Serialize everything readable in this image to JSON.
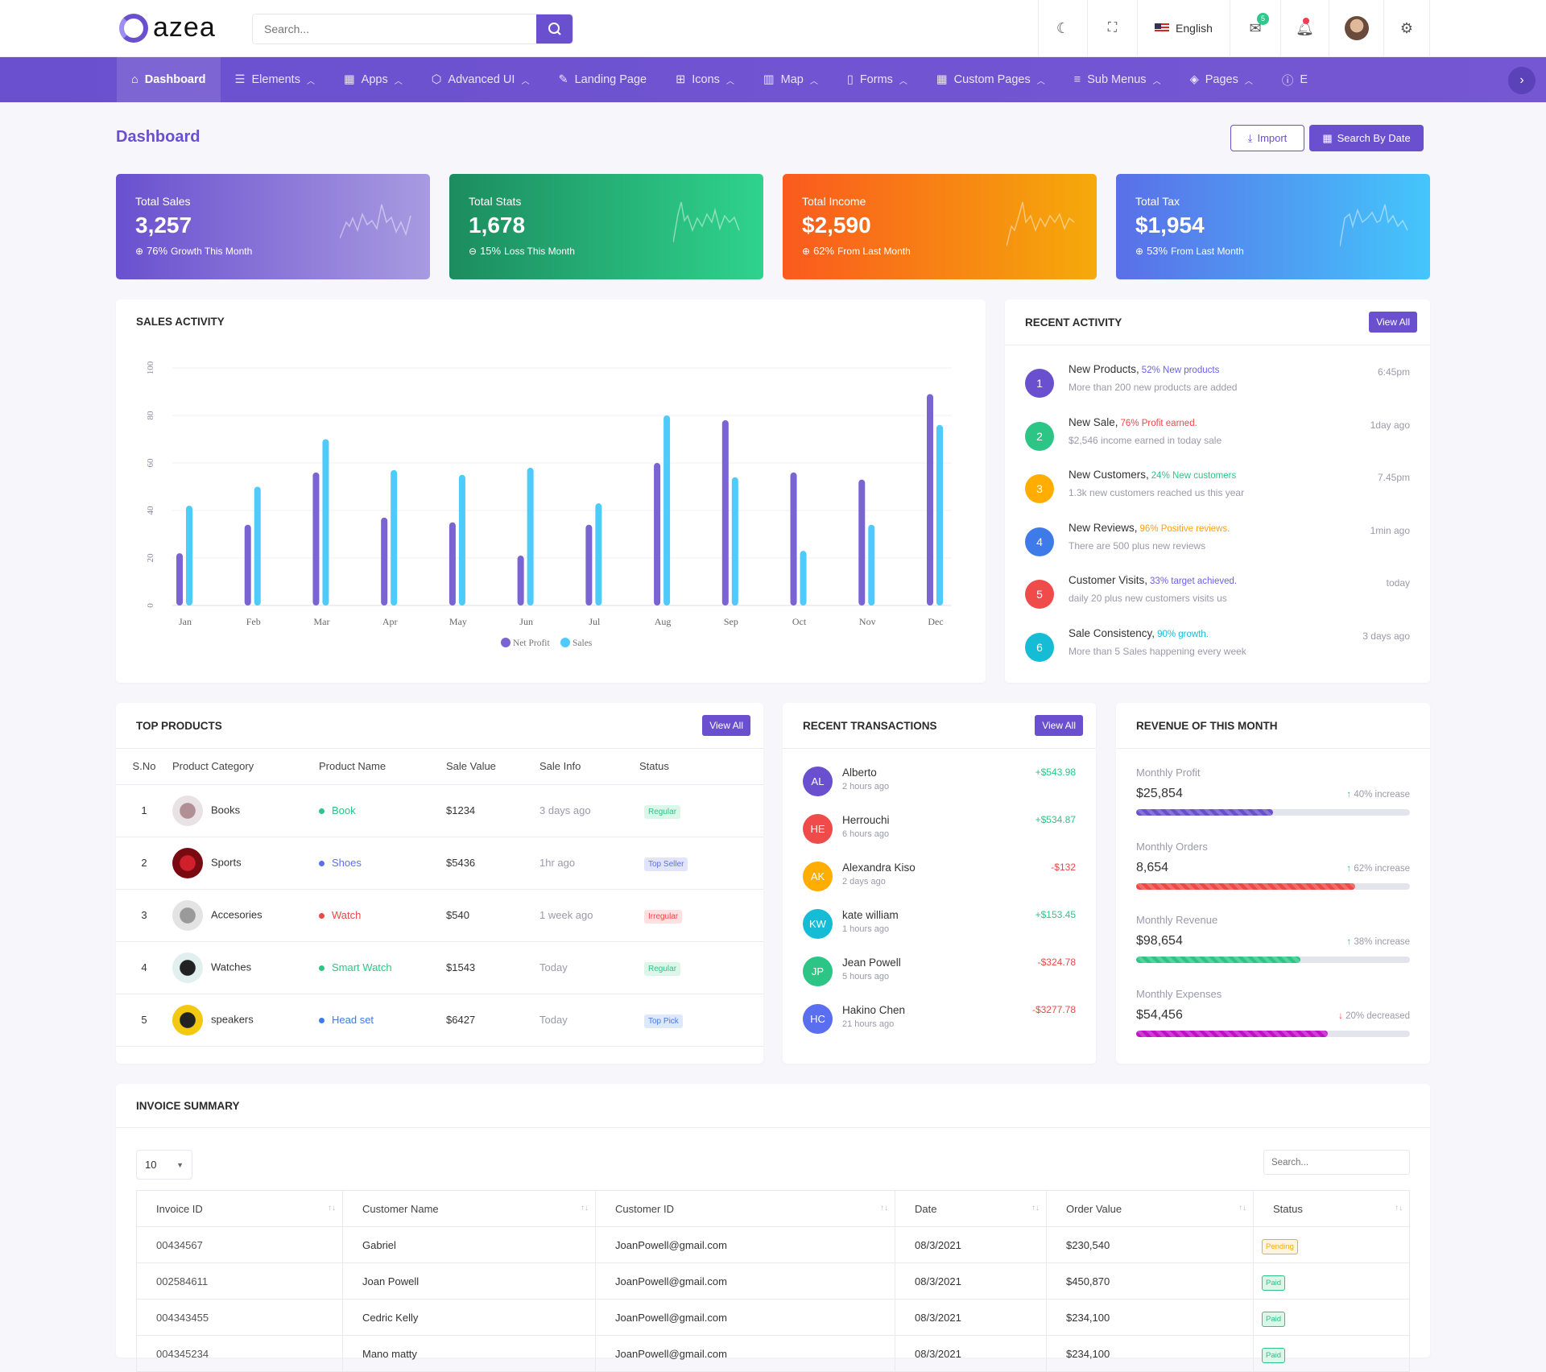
{
  "header": {
    "logo": "azea",
    "search_placeholder": "Search...",
    "language": "English",
    "mail_count": "5"
  },
  "nav": {
    "items": [
      {
        "label": "Dashboard",
        "icon": "home-icon",
        "glyph": "⌂",
        "active": true,
        "caret": false
      },
      {
        "label": "Elements",
        "icon": "database-icon",
        "glyph": "☰",
        "caret": true
      },
      {
        "label": "Apps",
        "icon": "grid-icon",
        "glyph": "▦",
        "caret": true
      },
      {
        "label": "Advanced UI",
        "icon": "box-icon",
        "glyph": "⬡",
        "caret": true
      },
      {
        "label": "Landing Page",
        "icon": "edit-icon",
        "glyph": "✎",
        "caret": false
      },
      {
        "label": "Icons",
        "icon": "gift-icon",
        "glyph": "⊞",
        "caret": true
      },
      {
        "label": "Map",
        "icon": "map-icon",
        "glyph": "▥",
        "caret": true
      },
      {
        "label": "Forms",
        "icon": "file-icon",
        "glyph": "▯",
        "caret": true
      },
      {
        "label": "Custom Pages",
        "icon": "apps-icon",
        "glyph": "▦",
        "caret": true
      },
      {
        "label": "Sub Menus",
        "icon": "list-icon",
        "glyph": "≡",
        "caret": true
      },
      {
        "label": "Pages",
        "icon": "layers-icon",
        "glyph": "◈",
        "caret": true
      },
      {
        "label": "E",
        "icon": "info-icon",
        "glyph": "ⓘ",
        "caret": false
      }
    ]
  },
  "page": {
    "title": "Dashboard",
    "import_label": "Import",
    "search_date_label": "Search By Date"
  },
  "stats": [
    {
      "title": "Total Sales",
      "value": "3,257",
      "pct": "76%",
      "note": "Growth This Month",
      "direction": "up",
      "colors": [
        "#6a50cf",
        "#a89be0"
      ]
    },
    {
      "title": "Total Stats",
      "value": "1,678",
      "pct": "15%",
      "note": "Loss This Month",
      "direction": "down",
      "colors": [
        "#1c8c5f",
        "#2fd38d"
      ]
    },
    {
      "title": "Total Income",
      "value": "$2,590",
      "pct": "62%",
      "note": "From Last Month",
      "direction": "up",
      "colors": [
        "#fa5a1e",
        "#f5aa0a"
      ]
    },
    {
      "title": "Total Tax",
      "value": "$1,954",
      "pct": "53%",
      "note": "From Last Month",
      "direction": "up",
      "colors": [
        "#5a6fe8",
        "#44c6fb"
      ]
    }
  ],
  "sales_activity": {
    "title": "SALES ACTIVITY"
  },
  "chart_data": {
    "type": "bar",
    "categories": [
      "Jan",
      "Feb",
      "Mar",
      "Apr",
      "May",
      "Jun",
      "Jul",
      "Aug",
      "Sep",
      "Oct",
      "Nov",
      "Dec"
    ],
    "series": [
      {
        "name": "Net Profit",
        "color": "#7a63d3",
        "values": [
          22,
          34,
          56,
          37,
          35,
          21,
          34,
          60,
          78,
          56,
          53,
          89
        ]
      },
      {
        "name": "Sales",
        "color": "#4fcbfb",
        "values": [
          42,
          50,
          70,
          57,
          55,
          58,
          43,
          80,
          54,
          23,
          34,
          76
        ]
      }
    ],
    "yticks": [
      0,
      20,
      40,
      60,
      80,
      100
    ],
    "ylim": [
      0,
      100
    ],
    "grid": true,
    "legend": "bottom"
  },
  "recent_activity": {
    "title": "RECENT ACTIVITY",
    "view_all": "View All",
    "items": [
      {
        "n": "1",
        "title": "New Products,",
        "tag": "52% New products",
        "desc": "More than 200 new products are added",
        "time": "6:45pm",
        "color": "#6a50cf",
        "tag_color": "#6a5ff0"
      },
      {
        "n": "2",
        "title": "New Sale,",
        "tag": "76% Profit earned.",
        "desc": "$2,546 income earned in today sale",
        "time": "1day ago",
        "color": "#2dc585",
        "tag_color": "#f04646"
      },
      {
        "n": "3",
        "title": "New Customers,",
        "tag": "24% New customers",
        "desc": "1.3k new customers reached us this year",
        "time": "7.45pm",
        "color": "#ffad00",
        "tag_color": "#2dc585"
      },
      {
        "n": "4",
        "title": "New Reviews,",
        "tag": "96% Positive reviews.",
        "desc": "There are 500 plus new reviews",
        "time": "1min ago",
        "color": "#3f7be8",
        "tag_color": "#ff9f1a"
      },
      {
        "n": "5",
        "title": "Customer Visits,",
        "tag": "33% target achieved.",
        "desc": "daily 20 plus new customers visits us",
        "time": "today",
        "color": "#ef4b4b",
        "tag_color": "#6a5ff0"
      },
      {
        "n": "6",
        "title": "Sale Consistency,",
        "tag": "90% growth.",
        "desc": "More than 5 Sales happening every week",
        "time": "3 days ago",
        "color": "#16bcd6",
        "tag_color": "#16bcd6"
      }
    ]
  },
  "top_products": {
    "title": "TOP PRODUCTS",
    "view_all": "View All",
    "columns": [
      "S.No",
      "Product Category",
      "Product Name",
      "Sale Value",
      "Sale Info",
      "Status"
    ],
    "rows": [
      {
        "sno": "1",
        "category": "Books",
        "name": "Book",
        "name_color": "#2dc585",
        "value": "$1234",
        "info": "3 days ago",
        "status": "Regular",
        "status_bg": "#dcf6ea",
        "status_fg": "#2dc585",
        "img": [
          "#b09095",
          "#e8e2e4"
        ]
      },
      {
        "sno": "2",
        "category": "Sports",
        "name": "Shoes",
        "name_color": "#5a6ff0",
        "value": "$5436",
        "info": "1hr ago",
        "status": "Top Seller",
        "status_bg": "#e2e4fb",
        "status_fg": "#5a6ff0",
        "img": [
          "#d0202b",
          "#7a0a12"
        ]
      },
      {
        "sno": "3",
        "category": "Accesories",
        "name": "Watch",
        "name_color": "#f04646",
        "value": "$540",
        "info": "1 week ago",
        "status": "Irregular",
        "status_bg": "#fde0e0",
        "status_fg": "#f04646",
        "img": [
          "#9a9a9a",
          "#e3e3e3"
        ]
      },
      {
        "sno": "4",
        "category": "Watches",
        "name": "Smart Watch",
        "name_color": "#2dc585",
        "value": "$1543",
        "info": "Today",
        "status": "Regular",
        "status_bg": "#dcf6ea",
        "status_fg": "#2dc585",
        "img": [
          "#222",
          "#e2efef"
        ]
      },
      {
        "sno": "5",
        "category": "speakers",
        "name": "Head set",
        "name_color": "#3f7be8",
        "value": "$6427",
        "info": "Today",
        "status": "Top Pick",
        "status_bg": "#dde8fb",
        "status_fg": "#3f7be8",
        "img": [
          "#222",
          "#f2c811"
        ]
      }
    ]
  },
  "transactions": {
    "title": "RECENT TRANSACTIONS",
    "view_all": "View All",
    "items": [
      {
        "initials": "AL",
        "name": "Alberto",
        "time": "2 hours ago",
        "amount": "+$543.98",
        "color": "#6a50cf",
        "amount_color": "#2dc585"
      },
      {
        "initials": "HE",
        "name": "Herrouchi",
        "time": "6 hours ago",
        "amount": "+$534.87",
        "color": "#ef4b4b",
        "amount_color": "#2dc585"
      },
      {
        "initials": "AK",
        "name": "Alexandra Kiso",
        "time": "2 days ago",
        "amount": "-$132",
        "color": "#ffad00",
        "amount_color": "#f04646"
      },
      {
        "initials": "KW",
        "name": "kate william",
        "time": "1 hours ago",
        "amount": "+$153.45",
        "color": "#16bcd6",
        "amount_color": "#2dc585"
      },
      {
        "initials": "JP",
        "name": "Jean Powell",
        "time": "5 hours ago",
        "amount": "-$324.78",
        "color": "#2dc585",
        "amount_color": "#f04646"
      },
      {
        "initials": "HC",
        "name": "Hakino Chen",
        "time": "21 hours ago",
        "amount": "-$3277.78",
        "color": "#5a6ff0",
        "amount_color": "#f04646"
      }
    ]
  },
  "revenue": {
    "title": "REVENUE OF THIS MONTH",
    "items": [
      {
        "label": "Monthly Profit",
        "value": "$25,854",
        "change": "40% increase",
        "direction": "up",
        "progress": 50,
        "color": "#6a50cf"
      },
      {
        "label": "Monthly Orders",
        "value": "8,654",
        "change": "62% increase",
        "direction": "up",
        "progress": 80,
        "color": "#f04646"
      },
      {
        "label": "Monthly Revenue",
        "value": "$98,654",
        "change": "38% increase",
        "direction": "up",
        "progress": 60,
        "color": "#2dc585"
      },
      {
        "label": "Monthly Expenses",
        "value": "$54,456",
        "change": "20% decreased",
        "direction": "down",
        "progress": 70,
        "color": "#c210c8"
      }
    ]
  },
  "invoice": {
    "title": "INVOICE SUMMARY",
    "page_size": "10",
    "search_placeholder": "Search...",
    "columns": [
      "Invoice ID",
      "Customer Name",
      "Customer ID",
      "Date",
      "Order Value",
      "Status"
    ],
    "rows": [
      {
        "id": "00434567",
        "name": "Gabriel",
        "cid": "JoanPowell@gmail.com",
        "date": "08/3/2021",
        "value": "$230,540",
        "status": "Pending"
      },
      {
        "id": "002584611",
        "name": "Joan Powell",
        "cid": "JoanPowell@gmail.com",
        "date": "08/3/2021",
        "value": "$450,870",
        "status": "Paid"
      },
      {
        "id": "004343455",
        "name": "Cedric Kelly",
        "cid": "JoanPowell@gmail.com",
        "date": "08/3/2021",
        "value": "$234,100",
        "status": "Paid"
      },
      {
        "id": "004345234",
        "name": "Mano matty",
        "cid": "JoanPowell@gmail.com",
        "date": "08/3/2021",
        "value": "$234,100",
        "status": "Paid"
      }
    ]
  }
}
